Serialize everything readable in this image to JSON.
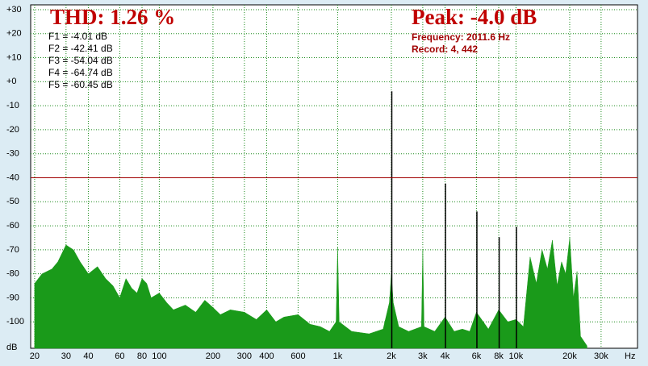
{
  "chart_data": {
    "type": "area",
    "title": "THD: 1.26 %",
    "peak": "Peak: -4.0 dB",
    "frequency": "Frequency: 2011.6 Hz",
    "record": "Record: 4,  442",
    "harmonic_labels": [
      "F1 = -4.01 dB",
      "F2 = -42.41 dB",
      "F3 = -54.04 dB",
      "F4 = -64.74 dB",
      "F5 = -60.45 dB"
    ],
    "xlabel": "Hz",
    "ylabel": "dB",
    "xlog": true,
    "grid": true,
    "xlim": [
      19,
      48000
    ],
    "ylim": [
      -111,
      32
    ],
    "xticks": [
      20,
      30,
      40,
      60,
      80,
      100,
      200,
      300,
      400,
      600,
      {
        "value": 1000,
        "label": "1k"
      },
      {
        "value": 2000,
        "label": "2k"
      },
      {
        "value": 3000,
        "label": "3k"
      },
      {
        "value": 4000,
        "label": "4k"
      },
      {
        "value": 6000,
        "label": "6k"
      },
      {
        "value": 8000,
        "label": "8k"
      },
      {
        "value": 10000,
        "label": "10k"
      },
      {
        "value": 20000,
        "label": "20k"
      },
      {
        "value": 30000,
        "label": "30k"
      }
    ],
    "yticks": [
      {
        "value": 30,
        "label": "+30"
      },
      {
        "value": 20,
        "label": "+20"
      },
      {
        "value": 10,
        "label": "+10"
      },
      {
        "value": 0,
        "label": "+0"
      },
      -10,
      -20,
      -30,
      -40,
      -50,
      -60,
      -70,
      -80,
      -90,
      -100
    ],
    "reference_line": {
      "value": -40,
      "color": "#a00000"
    },
    "series": [
      {
        "color": "#1a9a1a",
        "x": [
          20,
          22,
          25,
          27,
          30,
          33,
          36,
          40,
          45,
          50,
          55,
          60,
          65,
          70,
          75,
          80,
          85,
          90,
          100,
          110,
          120,
          140,
          160,
          180,
          200,
          220,
          250,
          300,
          350,
          400,
          450,
          500,
          600,
          700,
          800,
          900,
          980,
          1000,
          1020,
          1200,
          1500,
          1800,
          1950,
          2000,
          2050,
          2200,
          2500,
          2950,
          3000,
          3050,
          3500,
          4000,
          4500,
          5000,
          5500,
          6000,
          7000,
          8000,
          9000,
          10000,
          11000,
          12000,
          13000,
          14000,
          15000,
          16000,
          17000,
          18000,
          19000,
          20000,
          21000,
          22000,
          23000,
          25000
        ],
        "values": [
          -84,
          -80,
          -78,
          -75,
          -68,
          -70,
          -75,
          -80,
          -77,
          -82,
          -85,
          -90,
          -82,
          -86,
          -88,
          -82,
          -84,
          -90,
          -88,
          -92,
          -95,
          -93,
          -96,
          -91,
          -94,
          -97,
          -95,
          -96,
          -99,
          -95,
          -100,
          -98,
          -97,
          -101,
          -102,
          -104,
          -100,
          -69,
          -100,
          -104,
          -105,
          -103,
          -92,
          -80,
          -92,
          -102,
          -104,
          -102,
          -70,
          -102,
          -104,
          -98,
          -104,
          -103,
          -104,
          -96,
          -103,
          -95,
          -100,
          -99,
          -102,
          -73,
          -84,
          -70,
          -78,
          -66,
          -85,
          -75,
          -80,
          -65,
          -90,
          -79,
          -106,
          -110
        ]
      },
      {
        "color": "#000000",
        "style": "spikes",
        "x": [
          2011.6,
          4023,
          6035,
          8046,
          10058
        ],
        "values": [
          -4.01,
          -42.41,
          -54.04,
          -64.74,
          -60.45
        ]
      }
    ]
  }
}
